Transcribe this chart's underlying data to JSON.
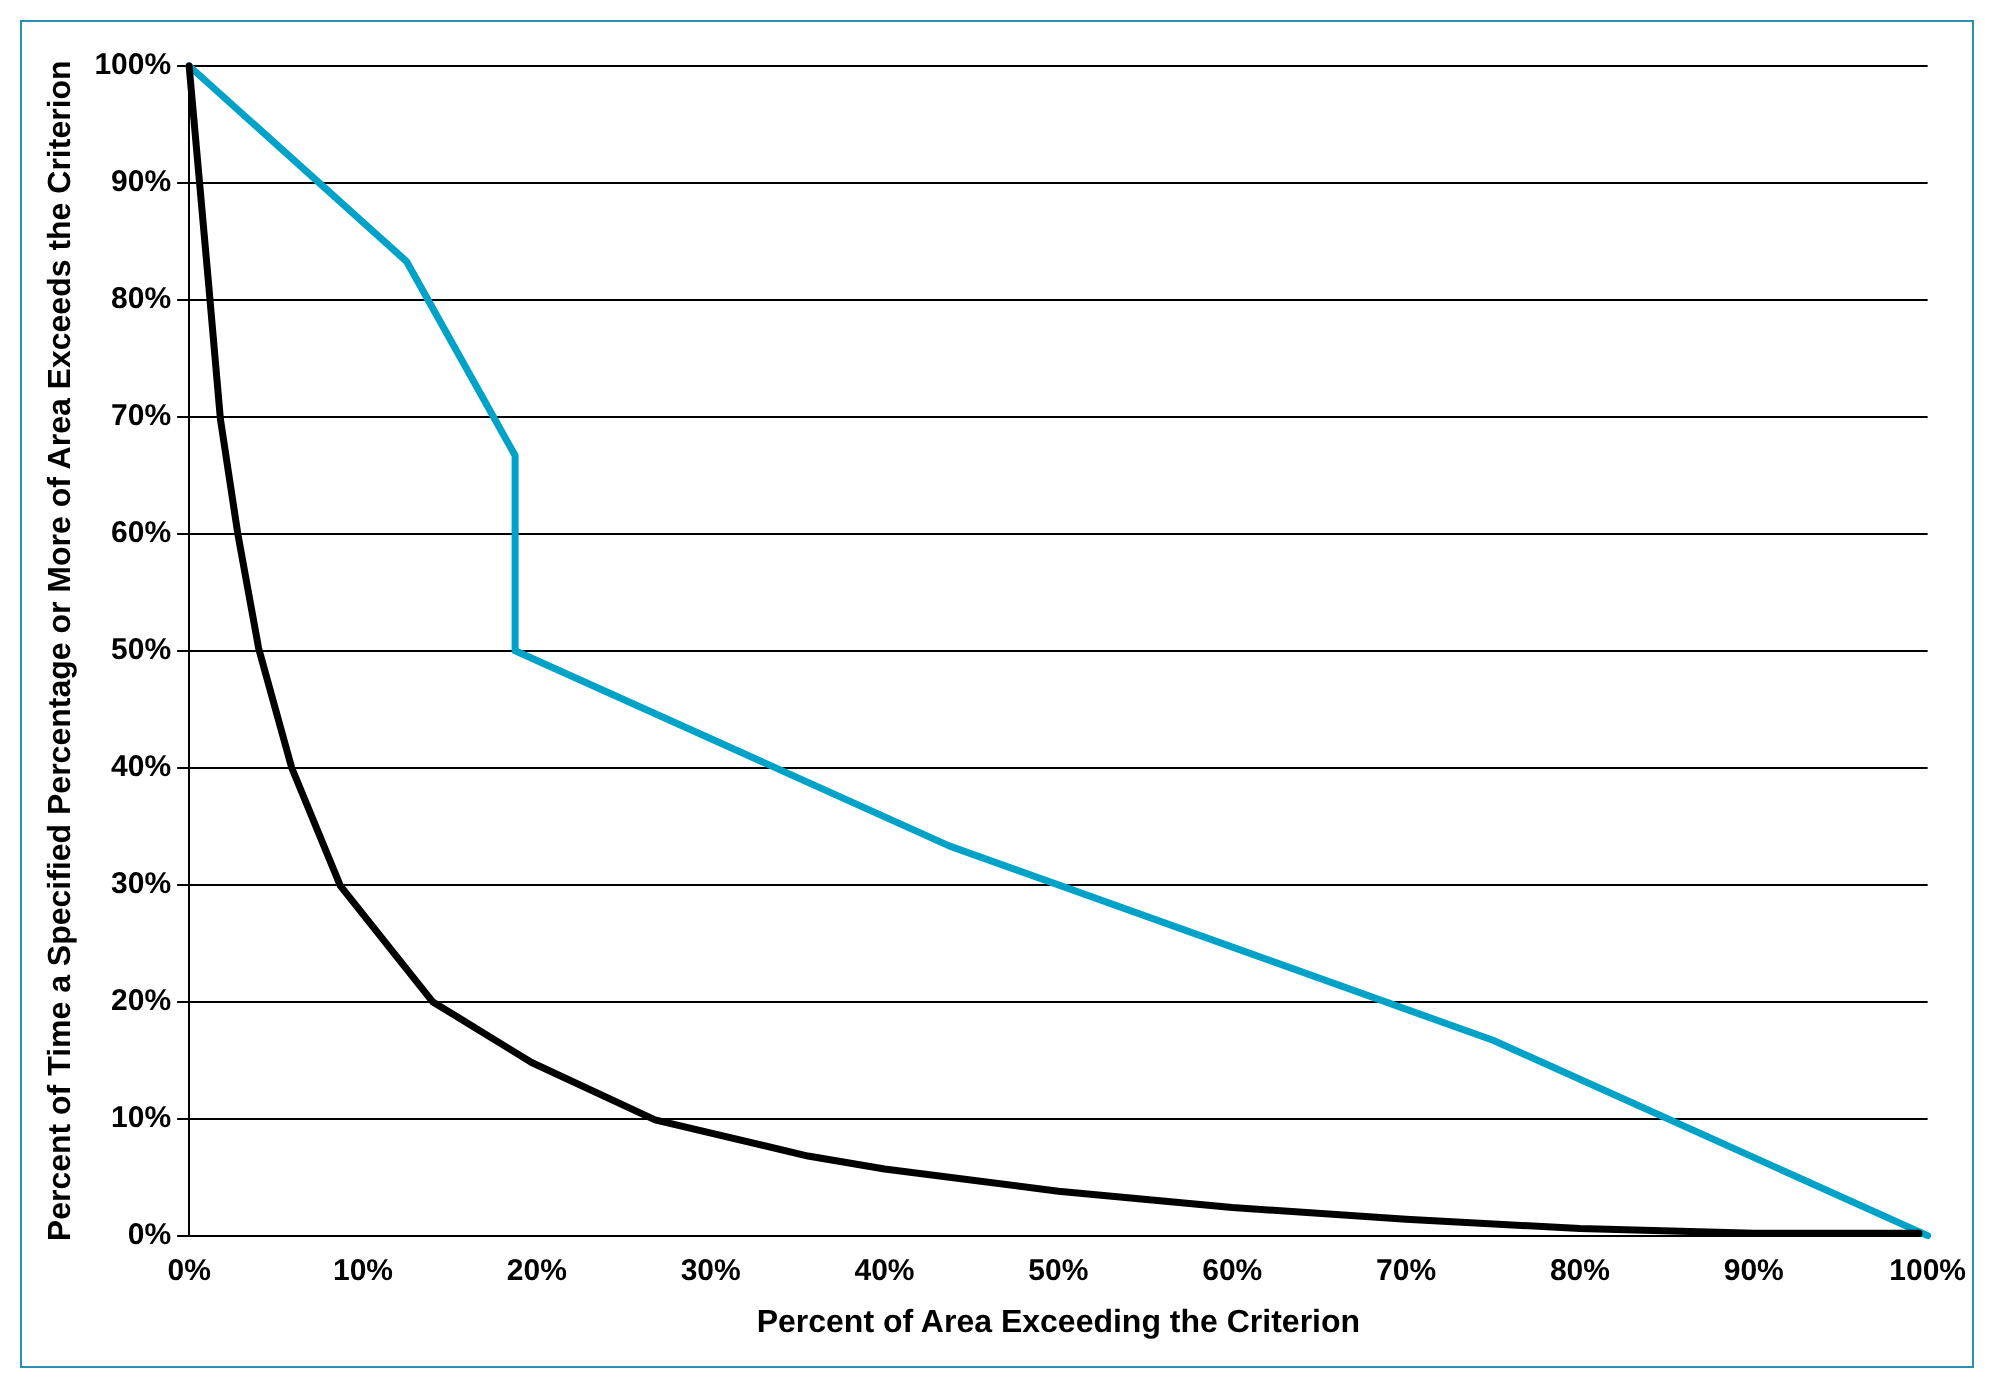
{
  "chart_data": {
    "type": "line",
    "xlabel": "Percent of Area Exceeding the Criterion",
    "ylabel": "Percent of Time a Specified Percentage or More of Area Exceeds the Criterion",
    "series": [
      {
        "color": "#000000",
        "x": [
          0,
          1.1,
          1.8,
          2.8,
          4.0,
          5.9,
          8.7,
          14,
          19.7,
          26.8,
          35.6,
          40,
          50,
          60,
          70,
          80,
          90,
          99.5
        ],
        "values": [
          100,
          81.7,
          69.8,
          60,
          50.2,
          40,
          29.9,
          20,
          14.8,
          9.9,
          6.8,
          5.7,
          3.8,
          2.4,
          1.4,
          0.6,
          0.2,
          0.2
        ]
      },
      {
        "color": "#00a2c8",
        "x": [
          0,
          12.5,
          18.75,
          18.75,
          43.75,
          75,
          100
        ],
        "values": [
          100,
          83.3,
          66.7,
          50,
          33.3,
          16.7,
          0
        ]
      }
    ],
    "xlim": [
      0,
      100
    ],
    "xticks": [
      {
        "value": 0,
        "label": "0%"
      },
      {
        "value": 10,
        "label": "10%"
      },
      {
        "value": 20,
        "label": "20%"
      },
      {
        "value": 30,
        "label": "30%"
      },
      {
        "value": 40,
        "label": "40%"
      },
      {
        "value": 50,
        "label": "50%"
      },
      {
        "value": 60,
        "label": "60%"
      },
      {
        "value": 70,
        "label": "70%"
      },
      {
        "value": 80,
        "label": "80%"
      },
      {
        "value": 90,
        "label": "90%"
      },
      {
        "value": 100,
        "label": "100%"
      }
    ],
    "ylim": [
      0,
      100
    ],
    "yticks": [
      {
        "value": 0,
        "label": "0%"
      },
      {
        "value": 10,
        "label": "10%"
      },
      {
        "value": 20,
        "label": "20%"
      },
      {
        "value": 30,
        "label": "30%"
      },
      {
        "value": 40,
        "label": "40%"
      },
      {
        "value": 50,
        "label": "50%"
      },
      {
        "value": 60,
        "label": "60%"
      },
      {
        "value": 70,
        "label": "70%"
      },
      {
        "value": 80,
        "label": "80%"
      },
      {
        "value": 90,
        "label": "90%"
      },
      {
        "value": 100,
        "label": "100%"
      }
    ],
    "grid": "y",
    "legend": false,
    "marker": "none",
    "line_style": "solid"
  }
}
